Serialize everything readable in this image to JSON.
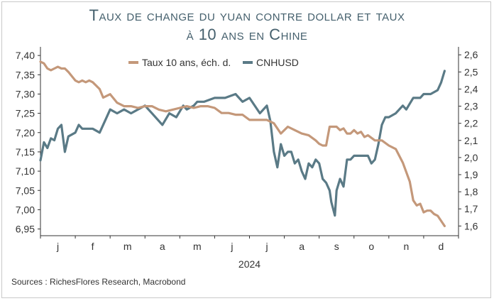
{
  "title_line1": "Taux de change du yuan contre dollar et taux",
  "title_line2": "à 10 ans en Chine",
  "source": "Sources : RichesFlores Research, Macrobond",
  "chart_data": {
    "type": "line",
    "xlabel": "2024",
    "x_ticks": [
      "j",
      "f",
      "m",
      "a",
      "m",
      "j",
      "j",
      "a",
      "s",
      "o",
      "n",
      "d"
    ],
    "y_left_ticks": [
      "7,40",
      "7,35",
      "7,30",
      "7,25",
      "7,20",
      "7,15",
      "7,10",
      "7,05",
      "7,00",
      "6,95"
    ],
    "y_right_ticks": [
      "2,6",
      "2,5",
      "2,4",
      "2,3",
      "2,2",
      "2,1",
      "2,0",
      "1,9",
      "1,8",
      "1,7",
      "1,6"
    ],
    "y_left_range": [
      6.94,
      7.415
    ],
    "y_right_range": [
      1.56,
      2.63
    ],
    "series": [
      {
        "name": "CNHUSD",
        "axis": "left",
        "color": "#5a7a86",
        "x": [
          0.0,
          0.1,
          0.2,
          0.3,
          0.4,
          0.5,
          0.6,
          0.7,
          0.8,
          1.0,
          1.1,
          1.2,
          1.3,
          1.5,
          1.7,
          1.9,
          2.0,
          2.2,
          2.4,
          2.6,
          2.8,
          3.0,
          3.2,
          3.5,
          3.7,
          3.9,
          4.1,
          4.2,
          4.4,
          4.5,
          4.7,
          5.0,
          5.3,
          5.6,
          5.8,
          6.0,
          6.3,
          6.5,
          6.6,
          6.7,
          6.8,
          6.9,
          7.0,
          7.1,
          7.2,
          7.3,
          7.4,
          7.5,
          7.6,
          7.7,
          7.8,
          7.9,
          8.0,
          8.1,
          8.2,
          8.3,
          8.35,
          8.45,
          8.5,
          8.6,
          8.7,
          8.8,
          8.9,
          9.0,
          9.2,
          9.4,
          9.5,
          9.6,
          9.7,
          9.8,
          9.9,
          10.0,
          10.2,
          10.4,
          10.5,
          10.7,
          10.9,
          11.0,
          11.2,
          11.4,
          11.5,
          11.6
        ],
        "values": [
          7.128,
          7.175,
          7.16,
          7.185,
          7.18,
          7.21,
          7.22,
          7.15,
          7.19,
          7.2,
          7.22,
          7.21,
          7.21,
          7.21,
          7.2,
          7.24,
          7.26,
          7.25,
          7.26,
          7.25,
          7.26,
          7.27,
          7.25,
          7.22,
          7.25,
          7.24,
          7.27,
          7.26,
          7.27,
          7.28,
          7.28,
          7.29,
          7.29,
          7.3,
          7.28,
          7.29,
          7.25,
          7.27,
          7.23,
          7.15,
          7.11,
          7.17,
          7.14,
          7.15,
          7.15,
          7.12,
          7.13,
          7.1,
          7.08,
          7.12,
          7.11,
          7.13,
          7.12,
          7.08,
          7.07,
          7.05,
          7.02,
          6.985,
          7.05,
          7.08,
          7.06,
          7.13,
          7.13,
          7.14,
          7.14,
          7.14,
          7.12,
          7.13,
          7.17,
          7.22,
          7.24,
          7.24,
          7.25,
          7.27,
          7.26,
          7.29,
          7.29,
          7.3,
          7.3,
          7.31,
          7.33,
          7.36
        ]
      },
      {
        "name": "Taux 10 ans, éch. d.",
        "axis": "right",
        "color": "#c4987a",
        "x": [
          0.0,
          0.1,
          0.2,
          0.3,
          0.4,
          0.5,
          0.6,
          0.7,
          0.8,
          1.0,
          1.1,
          1.2,
          1.3,
          1.4,
          1.5,
          1.6,
          1.7,
          1.8,
          1.9,
          2.0,
          2.2,
          2.4,
          2.6,
          2.8,
          3.0,
          3.2,
          3.4,
          3.6,
          3.8,
          4.0,
          4.2,
          4.4,
          4.6,
          4.8,
          5.0,
          5.2,
          5.4,
          5.6,
          5.8,
          6.0,
          6.3,
          6.5,
          6.7,
          6.9,
          7.1,
          7.3,
          7.5,
          7.7,
          7.9,
          8.0,
          8.1,
          8.2,
          8.3,
          8.4,
          8.5,
          8.6,
          8.7,
          8.8,
          8.9,
          9.0,
          9.1,
          9.2,
          9.3,
          9.4,
          9.6,
          9.8,
          10.0,
          10.2,
          10.4,
          10.6,
          10.7,
          10.8,
          10.9,
          11.0,
          11.1,
          11.2,
          11.3,
          11.4,
          11.6
        ],
        "values": [
          2.56,
          2.55,
          2.52,
          2.51,
          2.52,
          2.53,
          2.52,
          2.52,
          2.5,
          2.45,
          2.44,
          2.45,
          2.44,
          2.45,
          2.44,
          2.42,
          2.4,
          2.35,
          2.36,
          2.37,
          2.32,
          2.3,
          2.3,
          2.29,
          2.3,
          2.3,
          2.28,
          2.27,
          2.28,
          2.29,
          2.3,
          2.29,
          2.3,
          2.3,
          2.29,
          2.26,
          2.26,
          2.25,
          2.25,
          2.22,
          2.22,
          2.22,
          2.2,
          2.14,
          2.18,
          2.16,
          2.14,
          2.13,
          2.1,
          2.08,
          2.07,
          2.07,
          2.18,
          2.18,
          2.18,
          2.16,
          2.17,
          2.14,
          2.14,
          2.16,
          2.14,
          2.15,
          2.12,
          2.13,
          2.1,
          2.1,
          2.07,
          2.05,
          1.97,
          1.86,
          1.75,
          1.72,
          1.73,
          1.68,
          1.69,
          1.69,
          1.67,
          1.66,
          1.6
        ]
      }
    ]
  }
}
